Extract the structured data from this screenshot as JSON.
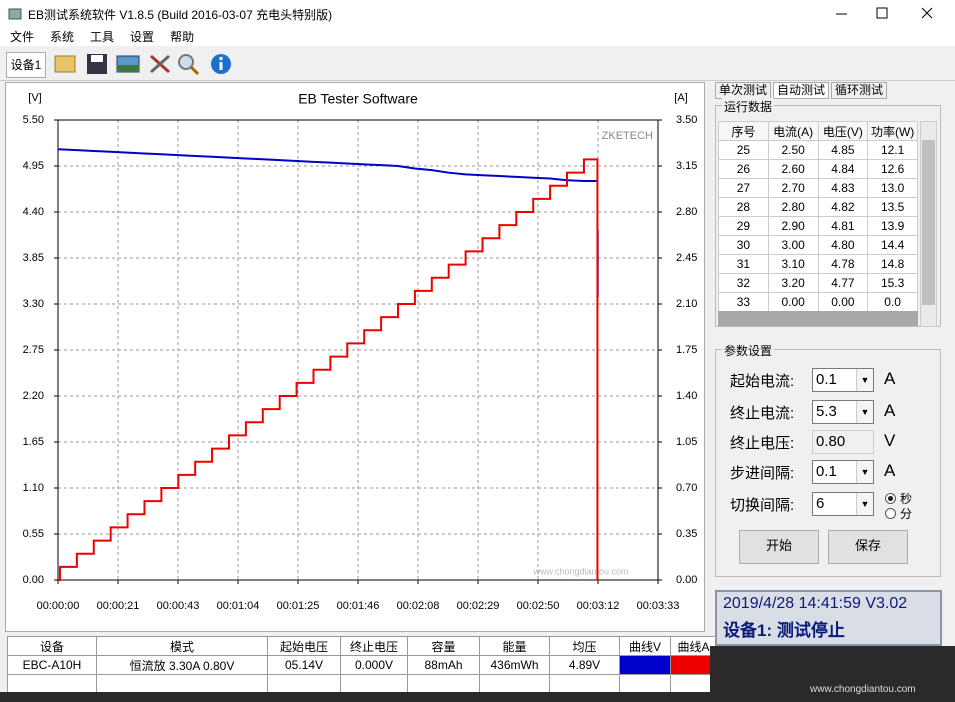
{
  "window": {
    "title": "EB测试系统软件 V1.8.5 (Build 2016-03-07 充电头特别版)"
  },
  "menu": [
    "文件",
    "系统",
    "工具",
    "设置",
    "帮助"
  ],
  "device_tab": "设备1",
  "chart_data": {
    "type": "line",
    "title": "EB Tester Software",
    "y_label": "[V]",
    "y2_label": "[A]",
    "watermark": "ZKETECH",
    "xlim": [
      0,
      213
    ],
    "xticks": [
      {
        "value": 0,
        "label": "00:00:00"
      },
      {
        "value": 21.3,
        "label": "00:00:21"
      },
      {
        "value": 42.6,
        "label": "00:00:43"
      },
      {
        "value": 63.9,
        "label": "00:01:04"
      },
      {
        "value": 85.2,
        "label": "00:01:25"
      },
      {
        "value": 106.5,
        "label": "00:01:46"
      },
      {
        "value": 127.8,
        "label": "00:02:08"
      },
      {
        "value": 149.1,
        "label": "00:02:29"
      },
      {
        "value": 170.4,
        "label": "00:02:50"
      },
      {
        "value": 191.7,
        "label": "00:03:12"
      },
      {
        "value": 213,
        "label": "00:03:33"
      }
    ],
    "ylim": [
      0,
      5.5
    ],
    "yticks": [
      {
        "value": 0,
        "label": "0.00"
      },
      0.55,
      {
        "value": 1.1,
        "label": "1.10"
      },
      1.65,
      {
        "value": 2.2,
        "label": "2.20"
      },
      2.75,
      {
        "value": 3.3,
        "label": "3.30"
      },
      3.85,
      {
        "value": 4.4,
        "label": "4.40"
      },
      4.95,
      {
        "value": 5.5,
        "label": "5.50"
      }
    ],
    "y2lim": [
      0,
      3.5
    ],
    "y2ticks": [
      {
        "value": 0,
        "label": "0.00"
      },
      0.35,
      {
        "value": 0.7,
        "label": "0.70"
      },
      1.05,
      {
        "value": 1.4,
        "label": "1.40"
      },
      1.75,
      {
        "value": 2.1,
        "label": "2.10"
      },
      2.45,
      {
        "value": 2.8,
        "label": "2.80"
      },
      3.15,
      {
        "value": 3.5,
        "label": "3.50"
      }
    ],
    "grid": true,
    "series": [
      {
        "name": "V",
        "color": "#0000cc",
        "x": [
          0,
          6.7,
          12.7,
          18.7,
          24.7,
          30.7,
          36.7,
          42.7,
          48.7,
          54.7,
          60.7,
          66.7,
          72.7,
          78.7,
          84.7,
          90.7,
          96.7,
          102.7,
          108.7,
          114.7,
          120.7,
          126.7,
          132.7,
          138.7,
          144.7,
          150.7,
          156.7,
          162.7,
          168.7,
          174.7,
          180.7,
          186.7,
          191.5,
          191.6,
          191.6,
          191.6
        ],
        "values": [
          5.15,
          5.14,
          5.13,
          5.12,
          5.11,
          5.1,
          5.09,
          5.08,
          5.07,
          5.06,
          5.05,
          5.04,
          5.03,
          5.02,
          5.01,
          5.0,
          4.99,
          4.98,
          4.97,
          4.96,
          4.95,
          4.92,
          4.9,
          4.87,
          4.85,
          4.84,
          4.83,
          4.82,
          4.81,
          4.8,
          4.78,
          4.77,
          4.77,
          null,
          4.18,
          3.38
        ]
      },
      {
        "name": "A",
        "color": "#ee0000",
        "axis": "y2",
        "x": [
          0,
          0.7,
          0.7,
          6.7,
          6.7,
          12.7,
          12.7,
          18.7,
          18.7,
          24.7,
          24.7,
          30.7,
          30.7,
          36.7,
          36.7,
          42.7,
          42.7,
          48.7,
          48.7,
          54.7,
          54.7,
          60.7,
          60.7,
          66.7,
          66.7,
          72.7,
          72.7,
          78.7,
          78.7,
          84.7,
          84.7,
          90.7,
          90.7,
          96.7,
          96.7,
          102.7,
          102.7,
          108.7,
          108.7,
          114.7,
          114.7,
          120.7,
          120.7,
          126.7,
          126.7,
          132.7,
          132.7,
          138.7,
          138.7,
          144.7,
          144.7,
          150.7,
          150.7,
          156.7,
          156.7,
          162.7,
          162.7,
          168.7,
          168.7,
          174.7,
          174.7,
          180.7,
          180.7,
          186.7,
          186.7,
          191.5,
          191.5
        ],
        "values": [
          0,
          0,
          0.1,
          0.1,
          0.2,
          0.2,
          0.3,
          0.3,
          0.4,
          0.4,
          0.5,
          0.5,
          0.6,
          0.6,
          0.7,
          0.7,
          0.8,
          0.8,
          0.9,
          0.9,
          1.0,
          1.0,
          1.1,
          1.1,
          1.2,
          1.2,
          1.3,
          1.3,
          1.4,
          1.4,
          1.5,
          1.5,
          1.6,
          1.6,
          1.7,
          1.7,
          1.8,
          1.8,
          1.9,
          1.9,
          2.0,
          2.0,
          2.1,
          2.1,
          2.2,
          2.2,
          2.3,
          2.3,
          2.4,
          2.4,
          2.5,
          2.5,
          2.6,
          2.6,
          2.7,
          2.7,
          2.8,
          2.8,
          2.9,
          2.9,
          3.0,
          3.0,
          3.1,
          3.1,
          3.2,
          3.2,
          0
        ]
      }
    ]
  },
  "right_panel": {
    "tabs": [
      "单次测试",
      "自动测试",
      "循环测试"
    ],
    "run_data": {
      "title": "运行数据",
      "columns": [
        "序号",
        "电流(A)",
        "电压(V)",
        "功率(W)"
      ],
      "rows": [
        [
          "25",
          "2.50",
          "4.85",
          "12.1"
        ],
        [
          "26",
          "2.60",
          "4.84",
          "12.6"
        ],
        [
          "27",
          "2.70",
          "4.83",
          "13.0"
        ],
        [
          "28",
          "2.80",
          "4.82",
          "13.5"
        ],
        [
          "29",
          "2.90",
          "4.81",
          "13.9"
        ],
        [
          "30",
          "3.00",
          "4.80",
          "14.4"
        ],
        [
          "31",
          "3.10",
          "4.78",
          "14.8"
        ],
        [
          "32",
          "3.20",
          "4.77",
          "15.3"
        ],
        [
          "33",
          "0.00",
          "0.00",
          "0.0"
        ]
      ]
    },
    "params": {
      "title": "参数设置",
      "fields": [
        {
          "label": "起始电流:",
          "value": "0.1",
          "unit": "A"
        },
        {
          "label": "终止电流:",
          "value": "5.3",
          "unit": "A"
        },
        {
          "label": "终止电压:",
          "value": "0.80",
          "unit": "V"
        },
        {
          "label": "步进间隔:",
          "value": "0.1",
          "unit": "A"
        },
        {
          "label": "切换间隔:",
          "value": "6"
        }
      ],
      "radio": [
        "秒",
        "分"
      ],
      "buttons": [
        "开始",
        "保存"
      ]
    },
    "status": {
      "line1": "2019/4/28 14:41:59  V3.02",
      "line2": "设备1: 测试停止"
    }
  },
  "summary_table": {
    "columns": [
      "设备",
      "模式",
      "起始电压",
      "终止电压",
      "容量",
      "能量",
      "均压",
      "曲线V",
      "曲线A"
    ],
    "rows": [
      [
        "EBC-A10H",
        "恒流放  3.30A  0.80V",
        "05.14V",
        "0.000V",
        "88mAh",
        "436mWh",
        "4.89V"
      ]
    ]
  },
  "watermark_url": "www.chongdiantou.com"
}
